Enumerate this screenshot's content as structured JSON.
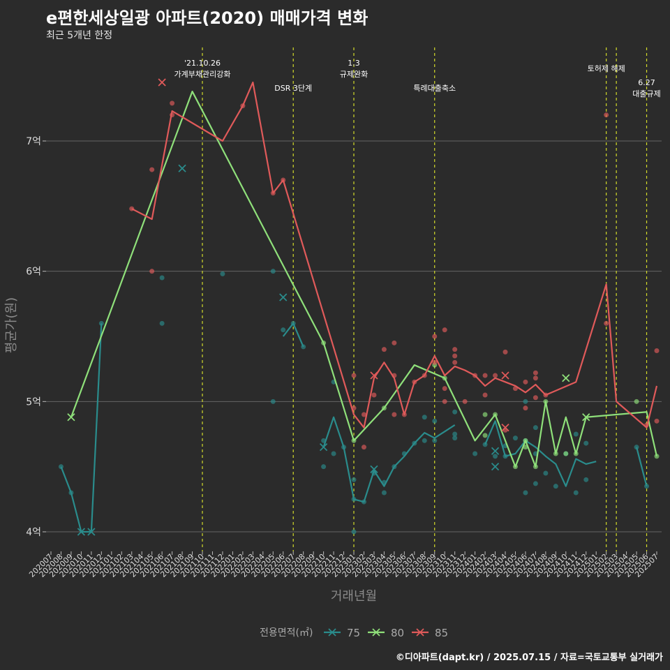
{
  "title": "e편한세상일광 아파트(2020) 매매가격 변화",
  "subtitle": "최근 5개년 한정",
  "credit": "©디아파트(dapt.kr) / 2025.07.15 / 자료=국토교통부 실거래가",
  "colors": {
    "75": "#2a8c8c",
    "80": "#8fe07a",
    "85": "#e05a5a",
    "vline": "#d4dc2a",
    "grid": "#666666"
  },
  "chart_data": {
    "type": "line",
    "xlabel": "거래년월",
    "ylabel": "평균가(원)",
    "ylim": [
      3.85,
      7.75
    ],
    "yticks": [
      {
        "v": 4,
        "label": "4억"
      },
      {
        "v": 5,
        "label": "5억"
      },
      {
        "v": 6,
        "label": "6억"
      },
      {
        "v": 7,
        "label": "7억"
      }
    ],
    "months": [
      "202007",
      "202008",
      "202009",
      "202010",
      "202011",
      "202012",
      "202101",
      "202102",
      "202103",
      "202104",
      "202105",
      "202106",
      "202107",
      "202108",
      "202109",
      "202110",
      "202111",
      "202112",
      "202201",
      "202202",
      "202203",
      "202204",
      "202205",
      "202206",
      "202207",
      "202208",
      "202209",
      "202210",
      "202211",
      "202212",
      "202301",
      "202302",
      "202303",
      "202304",
      "202305",
      "202306",
      "202307",
      "202308",
      "202309",
      "202310",
      "202311",
      "202312",
      "202401",
      "202402",
      "202403",
      "202404",
      "202405",
      "202406",
      "202407",
      "202408",
      "202409",
      "202410",
      "202411",
      "202412",
      "202501",
      "202502",
      "202503",
      "202504",
      "202505",
      "202506",
      "202507"
    ],
    "legend_title": "전용면적(㎡)",
    "events": [
      {
        "month": "202110",
        "lines": [
          "'21.10.26",
          "가계부채관리강화"
        ],
        "row": 0
      },
      {
        "month": "202207",
        "lines": [
          "DSR 3단계"
        ],
        "row": 2
      },
      {
        "month": "202301",
        "lines": [
          "1.3",
          "규제완화"
        ],
        "row": 0
      },
      {
        "month": "202309",
        "lines": [
          "특례대출축소"
        ],
        "row": 2
      },
      {
        "month": "202502",
        "lines": [
          "토허제 해제"
        ],
        "row": 1
      },
      {
        "month": "202503",
        "lines": [],
        "row": 1
      },
      {
        "month": "202506",
        "lines": [
          "6.27",
          "대출규제"
        ],
        "row": 3
      }
    ],
    "series": [
      {
        "name": "75",
        "line": [
          [
            "202008",
            4.5
          ],
          [
            "202009",
            4.3
          ],
          [
            "202010",
            4.0
          ],
          [
            "202011",
            4.0
          ],
          [
            "202012",
            5.6
          ],
          null,
          [
            "202206",
            5.5
          ],
          [
            "202207",
            5.6
          ],
          [
            "202208",
            5.42
          ],
          null,
          [
            "202210",
            4.65
          ],
          [
            "202211",
            4.88
          ],
          [
            "202212",
            4.65
          ],
          [
            "202301",
            4.25
          ],
          [
            "202302",
            4.23
          ],
          [
            "202303",
            4.47
          ],
          [
            "202304",
            4.35
          ],
          [
            "202305",
            4.5
          ],
          [
            "202306",
            4.58
          ],
          [
            "202307",
            4.68
          ],
          [
            "202308",
            4.76
          ],
          [
            "202309",
            4.72
          ],
          [
            "202310",
            4.77
          ],
          [
            "202311",
            4.82
          ],
          null,
          [
            "202402",
            4.67
          ],
          [
            "202403",
            4.85
          ],
          [
            "202404",
            4.58
          ],
          [
            "202405",
            4.6
          ],
          [
            "202406",
            4.7
          ],
          [
            "202407",
            4.65
          ],
          [
            "202408",
            4.58
          ],
          [
            "202409",
            4.52
          ],
          [
            "202410",
            4.35
          ],
          [
            "202411",
            4.56
          ],
          [
            "202412",
            4.52
          ],
          [
            "202501",
            4.54
          ],
          null,
          [
            "202505",
            4.65
          ],
          [
            "202506",
            4.35
          ]
        ],
        "points": [
          [
            "202008",
            4.5
          ],
          [
            "202009",
            4.3
          ],
          [
            "202012",
            5.6
          ],
          [
            "202106",
            5.95
          ],
          [
            "202106",
            5.6
          ],
          [
            "202112",
            5.98
          ],
          [
            "202205",
            6.0
          ],
          [
            "202205",
            5.0
          ],
          [
            "202206",
            5.55
          ],
          [
            "202207",
            5.6
          ],
          [
            "202208",
            5.42
          ],
          [
            "202210",
            4.7
          ],
          [
            "202210",
            4.5
          ],
          [
            "202211",
            5.15
          ],
          [
            "202211",
            4.6
          ],
          [
            "202212",
            4.65
          ],
          [
            "202301",
            4.25
          ],
          [
            "202301",
            4.4
          ],
          [
            "202301",
            4.0
          ],
          [
            "202302",
            4.23
          ],
          [
            "202303",
            4.45
          ],
          [
            "202304",
            4.38
          ],
          [
            "202304",
            4.3
          ],
          [
            "202305",
            4.5
          ],
          [
            "202306",
            4.6
          ],
          [
            "202307",
            4.68
          ],
          [
            "202308",
            4.7
          ],
          [
            "202308",
            4.88
          ],
          [
            "202309",
            4.7
          ],
          [
            "202309",
            4.85
          ],
          [
            "202311",
            4.75
          ],
          [
            "202311",
            4.72
          ],
          [
            "202311",
            4.92
          ],
          [
            "202401",
            4.6
          ],
          [
            "202402",
            4.67
          ],
          [
            "202403",
            4.58
          ],
          [
            "202404",
            4.58
          ],
          [
            "202404",
            4.66
          ],
          [
            "202405",
            4.72
          ],
          [
            "202406",
            4.7
          ],
          [
            "202406",
            4.3
          ],
          [
            "202406",
            5.0
          ],
          [
            "202407",
            4.37
          ],
          [
            "202407",
            4.6
          ],
          [
            "202407",
            4.8
          ],
          [
            "202408",
            4.45
          ],
          [
            "202409",
            4.35
          ],
          [
            "202410",
            4.6
          ],
          [
            "202411",
            4.3
          ],
          [
            "202411",
            4.75
          ],
          [
            "202412",
            4.4
          ],
          [
            "202412",
            4.68
          ],
          [
            "202505",
            4.65
          ],
          [
            "202506",
            4.35
          ]
        ],
        "crosses": [
          [
            "202010",
            4.0
          ],
          [
            "202011",
            4.0
          ],
          [
            "202108",
            6.79
          ],
          [
            "202206",
            5.8
          ],
          [
            "202210",
            4.65
          ],
          [
            "202303",
            4.48
          ],
          [
            "202403",
            4.5
          ],
          [
            "202403",
            4.62
          ]
        ]
      },
      {
        "name": "80",
        "line": [
          [
            "202009",
            4.88
          ],
          [
            "202109",
            7.38
          ],
          [
            "202210",
            5.45
          ],
          [
            "202301",
            4.7
          ],
          [
            "202304",
            4.95
          ],
          [
            "202307",
            5.28
          ],
          [
            "202310",
            5.18
          ],
          [
            "202401",
            4.7
          ],
          [
            "202403",
            4.9
          ],
          [
            "202405",
            4.5
          ],
          [
            "202406",
            4.7
          ],
          [
            "202407",
            4.5
          ],
          [
            "202408",
            5.0
          ],
          [
            "202409",
            4.6
          ],
          [
            "202410",
            4.88
          ],
          [
            "202411",
            4.6
          ],
          [
            "202412",
            4.88
          ],
          [
            "202506",
            4.92
          ],
          [
            "202507",
            4.58
          ]
        ],
        "points": [
          [
            "202210",
            5.45
          ],
          [
            "202301",
            4.7
          ],
          [
            "202304",
            4.95
          ],
          [
            "202309",
            5.28
          ],
          [
            "202310",
            5.18
          ],
          [
            "202402",
            4.9
          ],
          [
            "202402",
            4.74
          ],
          [
            "202403",
            4.9
          ],
          [
            "202405",
            4.5
          ],
          [
            "202406",
            4.7
          ],
          [
            "202406",
            4.65
          ],
          [
            "202407",
            4.5
          ],
          [
            "202408",
            5.0
          ],
          [
            "202409",
            4.6
          ],
          [
            "202410",
            4.6
          ],
          [
            "202411",
            4.6
          ],
          [
            "202505",
            5.0
          ],
          [
            "202507",
            4.58
          ]
        ],
        "crosses": [
          [
            "202009",
            4.88
          ],
          [
            "202410",
            5.18
          ],
          [
            "202412",
            4.88
          ]
        ]
      },
      {
        "name": "85",
        "line": [
          [
            "202103",
            6.48
          ],
          [
            "202105",
            6.4
          ],
          [
            "202107",
            7.23
          ],
          [
            "202112",
            7.0
          ],
          [
            "202202",
            7.27
          ],
          [
            "202203",
            7.45
          ],
          [
            "202205",
            6.6
          ],
          [
            "202206",
            6.7
          ],
          [
            "202301",
            4.9
          ],
          [
            "202302",
            4.8
          ],
          [
            "202303",
            5.18
          ],
          [
            "202304",
            5.3
          ],
          [
            "202305",
            5.18
          ],
          [
            "202306",
            4.9
          ],
          [
            "202307",
            5.15
          ],
          [
            "202308",
            5.2
          ],
          [
            "202309",
            5.35
          ],
          [
            "202310",
            5.2
          ],
          [
            "202311",
            5.27
          ],
          [
            "202312",
            5.24
          ],
          [
            "202401",
            5.2
          ],
          [
            "202402",
            5.12
          ],
          [
            "202403",
            5.18
          ],
          [
            "202404",
            5.15
          ],
          [
            "202405",
            5.12
          ],
          [
            "202406",
            5.07
          ],
          [
            "202407",
            5.13
          ],
          [
            "202408",
            5.05
          ],
          [
            "202411",
            5.15
          ],
          [
            "202502",
            5.9
          ],
          [
            "202503",
            5.0
          ],
          [
            "202506",
            4.8
          ],
          [
            "202507",
            5.12
          ]
        ],
        "points": [
          [
            "202103",
            6.48
          ],
          [
            "202105",
            6.78
          ],
          [
            "202105",
            6.0
          ],
          [
            "202107",
            7.29
          ],
          [
            "202107",
            7.2
          ],
          [
            "202202",
            7.27
          ],
          [
            "202205",
            6.6
          ],
          [
            "202206",
            6.7
          ],
          [
            "202301",
            5.2
          ],
          [
            "202301",
            4.95
          ],
          [
            "202302",
            4.65
          ],
          [
            "202302",
            4.9
          ],
          [
            "202303",
            5.05
          ],
          [
            "202304",
            5.4
          ],
          [
            "202305",
            5.45
          ],
          [
            "202305",
            5.2
          ],
          [
            "202305",
            4.9
          ],
          [
            "202306",
            4.9
          ],
          [
            "202307",
            5.15
          ],
          [
            "202308",
            5.2
          ],
          [
            "202309",
            5.5
          ],
          [
            "202309",
            5.3
          ],
          [
            "202310",
            5.55
          ],
          [
            "202310",
            5.1
          ],
          [
            "202310",
            5.0
          ],
          [
            "202311",
            5.4
          ],
          [
            "202311",
            5.35
          ],
          [
            "202311",
            5.3
          ],
          [
            "202312",
            5.0
          ],
          [
            "202401",
            5.2
          ],
          [
            "202402",
            5.05
          ],
          [
            "202402",
            5.2
          ],
          [
            "202403",
            5.2
          ],
          [
            "202404",
            5.38
          ],
          [
            "202404",
            4.78
          ],
          [
            "202405",
            5.1
          ],
          [
            "202406",
            5.15
          ],
          [
            "202406",
            4.95
          ],
          [
            "202407",
            5.22
          ],
          [
            "202407",
            5.18
          ],
          [
            "202407",
            5.03
          ],
          [
            "202408",
            5.05
          ],
          [
            "202502",
            7.2
          ],
          [
            "202502",
            5.6
          ],
          [
            "202506",
            4.82
          ],
          [
            "202507",
            5.39
          ],
          [
            "202507",
            4.85
          ]
        ],
        "crosses": [
          [
            "202106",
            7.45
          ],
          [
            "202303",
            5.2
          ],
          [
            "202404",
            5.2
          ],
          [
            "202404",
            4.8
          ]
        ]
      }
    ]
  }
}
